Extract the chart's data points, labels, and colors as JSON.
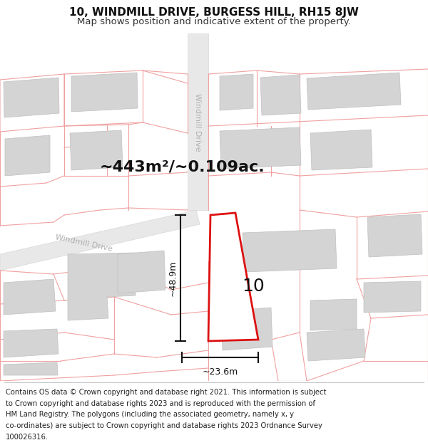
{
  "title_line1": "10, WINDMILL DRIVE, BURGESS HILL, RH15 8JW",
  "title_line2": "Map shows position and indicative extent of the property.",
  "area_text": "~443m²/~0.109ac.",
  "label_10": "10",
  "dim_height": "~48.9m",
  "dim_width": "~23.6m",
  "road_label_vertical": "Windmill Drive",
  "road_label_diagonal": "Windmill Drive",
  "footer_text": "Contains OS data © Crown copyright and database right 2021. This information is subject to Crown copyright and database rights 2023 and is reproduced with the permission of HM Land Registry. The polygons (including the associated geometry, namely x, y co-ordinates) are subject to Crown copyright and database rights 2023 Ordnance Survey 100026316.",
  "bg_color": "#ffffff",
  "map_bg": "#f5f5f5",
  "road_fill": "#e8e8e8",
  "building_fill": "#d4d4d4",
  "building_edge": "#c0c0c0",
  "boundary_color": "#f0a0a0",
  "highlight_stroke": "#dd1111",
  "highlight_fill": "#ffffff",
  "dim_color": "#111111",
  "road_text_color": "#b0b0b0",
  "title_fontsize": 11,
  "subtitle_fontsize": 9.5,
  "area_fontsize": 16,
  "label_fontsize": 18,
  "dim_fontsize": 9,
  "footer_fontsize": 7.2,
  "road_label_fontsize": 8
}
